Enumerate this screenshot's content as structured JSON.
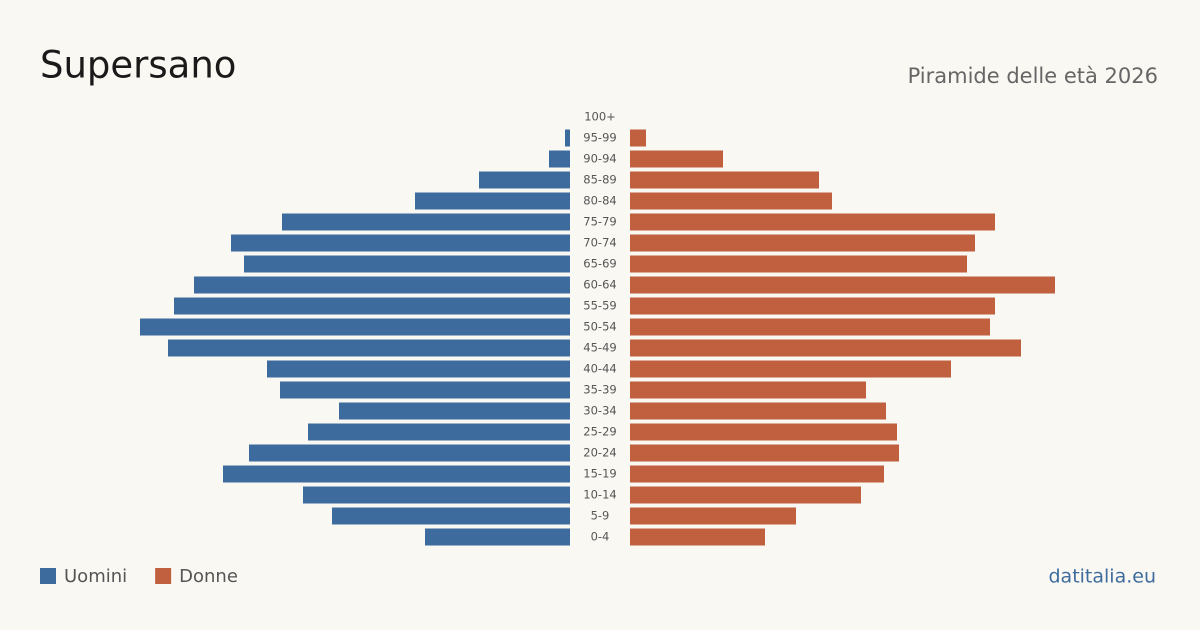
{
  "chart_data": {
    "type": "pyramid",
    "title": "Supersano",
    "subtitle": "Piramide delle età 2026",
    "source": "datitalia.eu",
    "categories": [
      "100+",
      "95-99",
      "90-94",
      "85-89",
      "80-84",
      "75-79",
      "70-74",
      "65-69",
      "60-64",
      "55-59",
      "50-54",
      "45-49",
      "40-44",
      "35-39",
      "30-34",
      "25-29",
      "20-24",
      "15-19",
      "10-14",
      "5-9",
      "0-4"
    ],
    "xlim": [
      0,
      440
    ],
    "legend": "bottom-left",
    "series": [
      {
        "name": "Uomini",
        "color": "#3d6b9e",
        "values": [
          0,
          5,
          21,
          91,
          155,
          288,
          339,
          326,
          376,
          396,
          430,
          402,
          303,
          290,
          231,
          262,
          321,
          347,
          267,
          238,
          145
        ]
      },
      {
        "name": "Donne",
        "color": "#c0603e",
        "values": [
          0,
          16,
          93,
          189,
          202,
          365,
          345,
          337,
          425,
          365,
          360,
          391,
          321,
          236,
          256,
          267,
          269,
          254,
          231,
          166,
          135
        ]
      }
    ]
  }
}
